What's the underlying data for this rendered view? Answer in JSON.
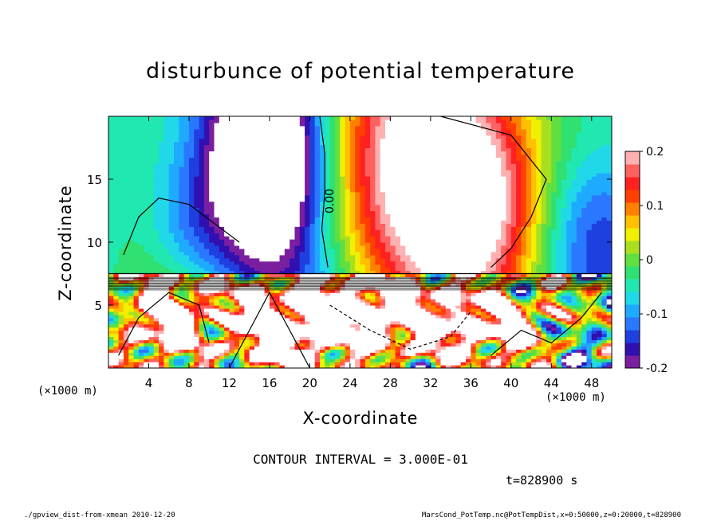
{
  "chart_data": {
    "type": "heatmap",
    "title": "disturbunce of potential temperature",
    "xlabel": "X-coordinate",
    "ylabel": "Z-coordinate",
    "x_unit": "(×1000 m)",
    "xlim": [
      0,
      50
    ],
    "ylim": [
      0,
      20
    ],
    "x_ticks": [
      4,
      8,
      12,
      16,
      20,
      24,
      28,
      32,
      36,
      40,
      44,
      48
    ],
    "y_ticks": [
      5,
      10,
      15
    ],
    "colorbar": {
      "range": [
        -0.2,
        0.2
      ],
      "tick_values": [
        -0.2,
        -0.1,
        0,
        0.1,
        0.2
      ],
      "tick_labels": [
        "-0.2",
        "-0.1",
        "0",
        "0.1",
        "0.2"
      ],
      "colors": [
        "#7a1fa0",
        "#3010b0",
        "#1f40e0",
        "#2a78ff",
        "#1eaaff",
        "#20d8e8",
        "#20e8b0",
        "#30e070",
        "#60e040",
        "#a8e020",
        "#f0f000",
        "#ffc000",
        "#ff8000",
        "#ff4000",
        "#ff2020",
        "#ff6060",
        "#ffb0b0"
      ]
    },
    "contour_label": "0.00",
    "contour_interval_text": "CONTOUR INTERVAL = 3.000E-01"
  },
  "time_text": "t=828900 s",
  "footer_left": "./gpview_dist-from-xmean  2010-12-20",
  "footer_right": "MarsCond_PotTemp.nc@PotTempDist,x=0:50000,z=0:20000,t=828900"
}
